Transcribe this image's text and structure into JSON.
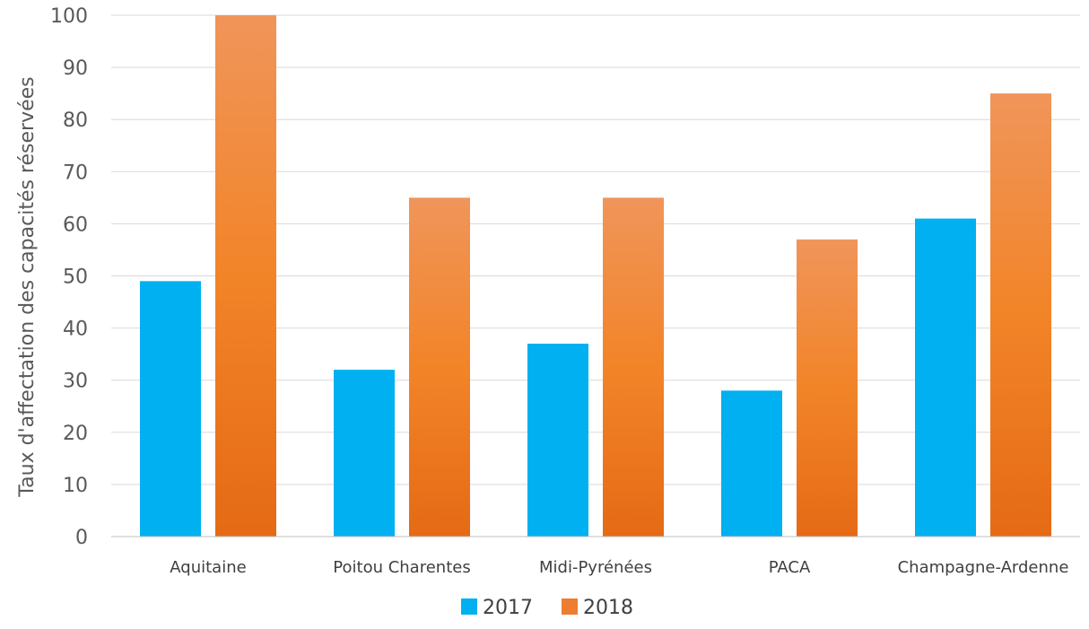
{
  "chart_data": {
    "type": "bar",
    "title": "",
    "xlabel": "",
    "ylabel": "Taux d'affectation des capacités réservées",
    "categories": [
      "Aquitaine",
      "Poitou Charentes",
      "Midi-Pyrénées",
      "PACA",
      "Champagne-Ardenne"
    ],
    "series": [
      {
        "name": "2017",
        "values": [
          49,
          32,
          37,
          28,
          61
        ],
        "color": "#00b0f0"
      },
      {
        "name": "2018",
        "values": [
          100,
          65,
          65,
          57,
          85
        ],
        "color": "#ed7d31"
      }
    ],
    "ylim": [
      0,
      100
    ],
    "yticks": [
      "0",
      "10",
      "20",
      "30",
      "40",
      "50",
      "60",
      "70",
      "80",
      "90",
      "100"
    ],
    "grid": true,
    "legend_position": "bottom"
  }
}
